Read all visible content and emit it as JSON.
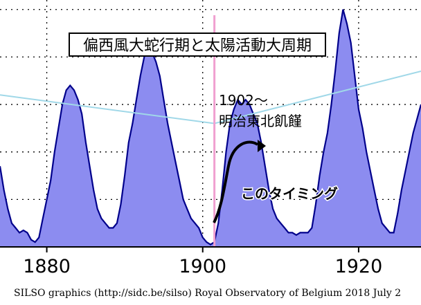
{
  "chart_data": {
    "type": "area",
    "title": "偏西風大蛇行期と太陽活動大周期",
    "xlim": [
      1874,
      1928
    ],
    "ylim": [
      0,
      52
    ],
    "grid": true,
    "x_ticks": [
      {
        "value": 1880,
        "label": "1880"
      },
      {
        "value": 1900,
        "label": "1900"
      },
      {
        "value": 1920,
        "label": "1920"
      }
    ],
    "series": [
      {
        "color": "#8c8cf0",
        "edge_color": "#00008b",
        "x": [
          1874.0,
          1874.5,
          1875.0,
          1875.5,
          1876.0,
          1876.5,
          1877.0,
          1877.5,
          1878.0,
          1878.5,
          1879.0,
          1879.5,
          1880.0,
          1880.5,
          1881.0,
          1881.5,
          1882.0,
          1882.5,
          1883.0,
          1883.5,
          1884.0,
          1884.5,
          1885.0,
          1885.5,
          1886.0,
          1886.5,
          1887.0,
          1887.5,
          1888.0,
          1888.5,
          1889.0,
          1889.5,
          1890.0,
          1890.5,
          1891.0,
          1891.5,
          1892.0,
          1892.5,
          1893.0,
          1893.5,
          1894.0,
          1894.5,
          1895.0,
          1895.5,
          1896.0,
          1896.5,
          1897.0,
          1897.5,
          1898.0,
          1898.5,
          1899.0,
          1899.5,
          1900.0,
          1900.5,
          1901.0,
          1901.5,
          1902.0,
          1902.5,
          1903.0,
          1903.5,
          1904.0,
          1904.5,
          1905.0,
          1905.5,
          1906.0,
          1906.5,
          1907.0,
          1907.5,
          1908.0,
          1908.5,
          1909.0,
          1909.5,
          1910.0,
          1910.5,
          1911.0,
          1911.5,
          1912.0,
          1912.5,
          1913.0,
          1913.5,
          1914.0,
          1914.5,
          1915.0,
          1915.5,
          1916.0,
          1916.5,
          1917.0,
          1917.5,
          1918.0,
          1918.5,
          1919.0,
          1919.5,
          1920.0,
          1920.5,
          1921.0,
          1921.5,
          1922.0,
          1922.5,
          1923.0,
          1923.5,
          1924.0,
          1924.5,
          1925.0,
          1925.5,
          1926.0,
          1926.5,
          1927.0,
          1927.5,
          1928.0
        ],
        "values": [
          17,
          12,
          8,
          5,
          4,
          3,
          3.5,
          3,
          1.5,
          1,
          2,
          6,
          10,
          14,
          20,
          25,
          30,
          33,
          34,
          33,
          31,
          28,
          22,
          17,
          12,
          8,
          6,
          5,
          4,
          4,
          5,
          9,
          15,
          22,
          26,
          31,
          36,
          40,
          42,
          41,
          39,
          36,
          31,
          26,
          22,
          18,
          14,
          10,
          8,
          6,
          5,
          4,
          2,
          1,
          0.5,
          1,
          5,
          12,
          20,
          26,
          29,
          31,
          30,
          31,
          30,
          28,
          26,
          22,
          17,
          12,
          8,
          6,
          5,
          4,
          3,
          3,
          2.5,
          3,
          3,
          3,
          4,
          9,
          15,
          20,
          24,
          30,
          37,
          45,
          50,
          47,
          43,
          36,
          29,
          25,
          20,
          16,
          12,
          8,
          5,
          4,
          3,
          3,
          7,
          12,
          16,
          20,
          24,
          27,
          30
        ]
      }
    ],
    "reference_lines": [
      {
        "orientation": "vertical",
        "x": 1901.5,
        "color": "#f0a0d0"
      }
    ],
    "trend_line": {
      "color": "#a0d8e8",
      "x": [
        1874,
        1901.5,
        1928
      ],
      "y": [
        32,
        26,
        37
      ]
    },
    "annotations": {
      "event_year": "1902～",
      "event_name": "明治東北飢饉",
      "timing_note": "このタイミング"
    },
    "footer": "SILSO graphics (http://sidc.be/silso)  Royal Observatory of Belgium  2018 July 2"
  }
}
